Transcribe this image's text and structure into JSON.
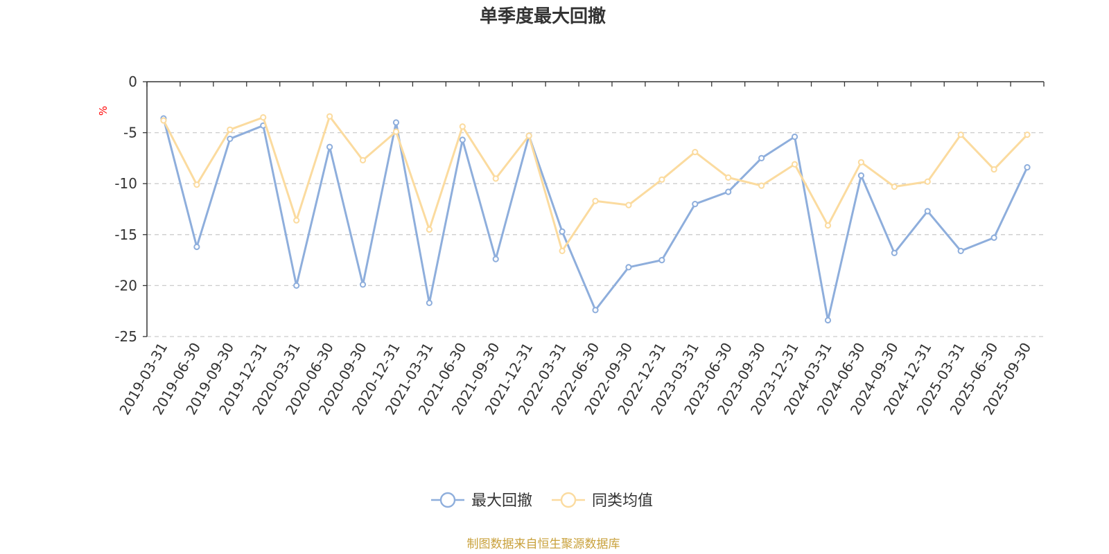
{
  "chart_data": {
    "type": "line",
    "title": "单季度最大回撤",
    "ylabel": "%",
    "xlabel": "",
    "ylim": [
      -25,
      0
    ],
    "yticks": [
      0,
      -5,
      -10,
      -15,
      -20,
      -25
    ],
    "grid": true,
    "legend_position": "bottom-center",
    "categories": [
      "2019-03-31",
      "2019-06-30",
      "2019-09-30",
      "2019-12-31",
      "2020-03-31",
      "2020-06-30",
      "2020-09-30",
      "2020-12-31",
      "2021-03-31",
      "2021-06-30",
      "2021-09-30",
      "2021-12-31",
      "2022-03-31",
      "2022-06-30",
      "2022-09-30",
      "2022-12-31",
      "2023-03-31",
      "2023-06-30",
      "2023-09-30",
      "2023-12-31",
      "2024-03-31",
      "2024-06-30",
      "2024-09-30",
      "2024-12-31",
      "2025-03-31",
      "2025-06-30",
      "2025-09-30"
    ],
    "series": [
      {
        "name": "最大回撤",
        "color": "#8eaedc",
        "values": [
          -3.6,
          -16.2,
          -5.6,
          -4.3,
          -20.0,
          -6.4,
          -19.9,
          -4.0,
          -21.7,
          -5.7,
          -17.4,
          -5.3,
          -14.7,
          -22.4,
          -18.2,
          -17.5,
          -12.0,
          -10.8,
          -7.5,
          -5.4,
          -23.4,
          -9.2,
          -16.8,
          -12.7,
          -16.6,
          -15.3,
          -8.4
        ]
      },
      {
        "name": "同类均值",
        "color": "#fbdb9f",
        "values": [
          -3.8,
          -10.1,
          -4.7,
          -3.5,
          -13.6,
          -3.4,
          -7.7,
          -4.9,
          -14.5,
          -4.4,
          -9.5,
          -5.3,
          -16.6,
          -11.7,
          -12.1,
          -9.6,
          -6.9,
          -9.4,
          -10.2,
          -8.1,
          -14.1,
          -7.9,
          -10.3,
          -9.8,
          -5.2,
          -8.6,
          -5.2
        ]
      }
    ]
  },
  "footer": {
    "source_text": "制图数据来自恒生聚源数据库",
    "source_color": "#c9a13c"
  },
  "colors": {
    "title": "#333333",
    "axis_text": "#333333",
    "unit_label": "#ff0000",
    "grid": "#cccccc",
    "axis_line": "#333333"
  }
}
